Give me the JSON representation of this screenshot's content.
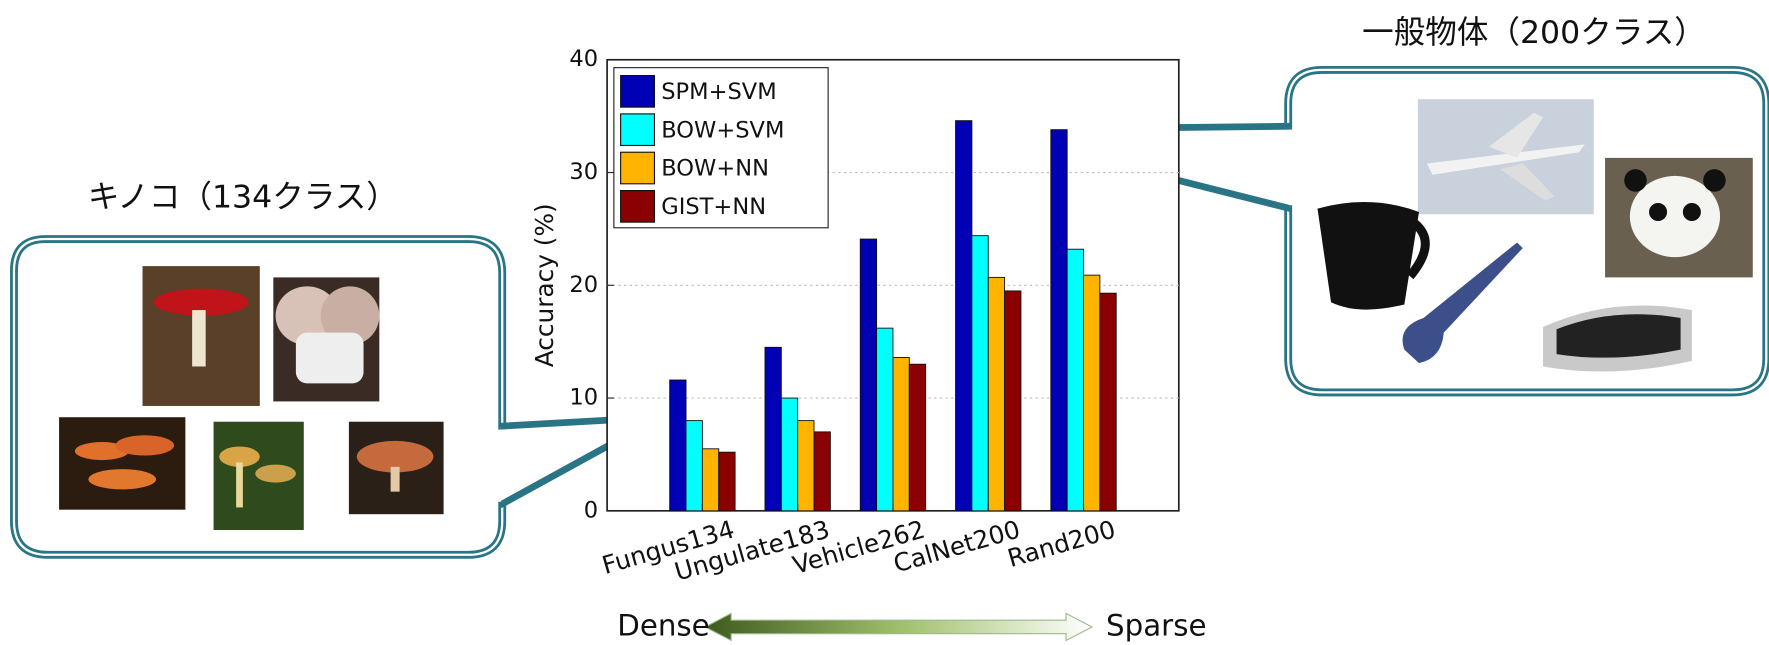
{
  "chart_data": {
    "type": "bar",
    "categories": [
      "Fungus134",
      "Ungulate183",
      "Vehicle262",
      "CalNet200",
      "Rand200"
    ],
    "series": [
      {
        "name": "SPM+SVM",
        "color": "#0000b4",
        "values": [
          11.6,
          14.5,
          24.1,
          34.6,
          33.8
        ]
      },
      {
        "name": "BOW+SVM",
        "color": "#00ffff",
        "values": [
          8.0,
          10.0,
          16.2,
          24.4,
          23.2
        ]
      },
      {
        "name": "BOW+NN",
        "color": "#ffb400",
        "values": [
          5.5,
          8.0,
          13.6,
          20.7,
          20.9
        ]
      },
      {
        "name": "GIST+NN",
        "color": "#8b0000",
        "values": [
          5.2,
          7.0,
          13.0,
          19.5,
          19.3
        ]
      }
    ],
    "ylabel": "Accuracy (%)",
    "ylim": [
      0,
      40
    ],
    "yticks": [
      0,
      10,
      20,
      30,
      40
    ],
    "grid": true,
    "legend": "upper left",
    "annotations": {
      "left_callout": "キノコ（134クラス）",
      "right_callout": "一般物体（200クラス）",
      "dense": "Dense",
      "sparse": "Sparse"
    }
  }
}
